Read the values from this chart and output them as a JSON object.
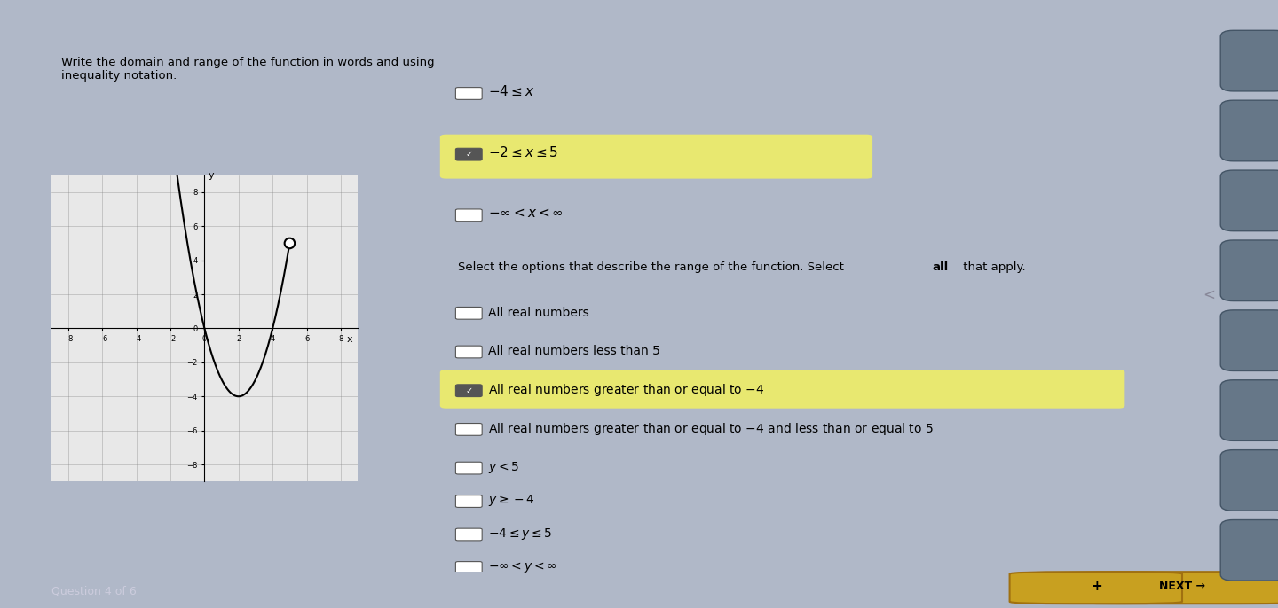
{
  "bg_color": "#b0b8c8",
  "panel_color": "#d8dce4",
  "title_text": "Write the domain and range of the function in words and using\ninequality notation.",
  "question_text": "Select the options that describe the range of the function. Select ",
  "question_bold": "all",
  "question_end": " that apply.",
  "domain_options": [
    {
      "text": "$-4 \\leq x$",
      "checked": false,
      "highlighted": false
    },
    {
      "text": "$-2 \\leq x \\leq 5$",
      "checked": true,
      "highlighted": true
    },
    {
      "text": "$-\\infty < x < \\infty$",
      "checked": false,
      "highlighted": false
    }
  ],
  "range_options": [
    {
      "text": "All real numbers",
      "checked": false,
      "highlighted": false
    },
    {
      "text": "All real numbers less than 5",
      "checked": false,
      "highlighted": false
    },
    {
      "text": "All real numbers greater than or equal to $-4$",
      "checked": true,
      "highlighted": true
    },
    {
      "text": "All real numbers greater than or equal to $-4$ and less than or equal to 5",
      "checked": false,
      "highlighted": false
    },
    {
      "text": "$y < 5$",
      "checked": false,
      "highlighted": false
    },
    {
      "text": "$y \\geq -4$",
      "checked": false,
      "highlighted": false
    },
    {
      "text": "$-4 \\leq y \\leq 5$",
      "checked": false,
      "highlighted": false
    },
    {
      "text": "$-\\infty < y < \\infty$",
      "checked": false,
      "highlighted": false
    }
  ],
  "highlight_color": "#e8e870",
  "check_color": "#333333",
  "graph_xlim": [
    -9,
    9
  ],
  "graph_ylim": [
    -9,
    9
  ],
  "footer_text": "Question 4 of 6",
  "next_btn_color": "#c8a020",
  "sidebar_btn_color": "#555566"
}
